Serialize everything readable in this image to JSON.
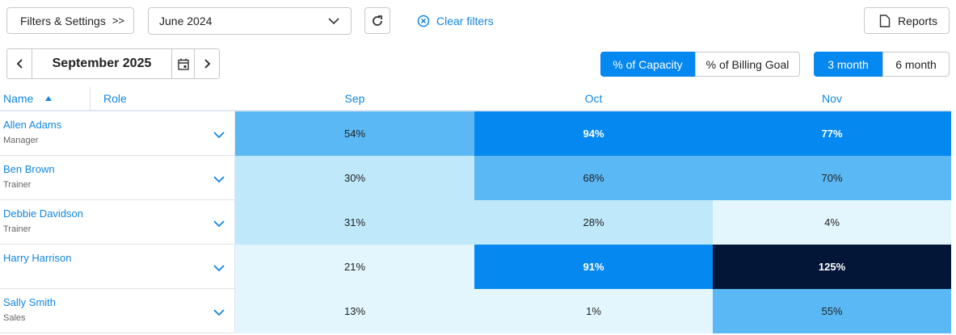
{
  "toolbar": {
    "filters_button": "Filters & Settings",
    "date_select": "June 2024",
    "clear_filters": "Clear filters",
    "reports_button": "Reports"
  },
  "period": {
    "label": "September 2025"
  },
  "metric_toggle": {
    "options": [
      "% of Capacity",
      "% of Billing Goal"
    ],
    "active": 0
  },
  "range_toggle": {
    "options": [
      "3 month",
      "6 month"
    ],
    "active": 0
  },
  "table": {
    "columns": {
      "name": "Name",
      "role": "Role",
      "months": [
        "Sep",
        "Oct",
        "Nov"
      ]
    },
    "rows": [
      {
        "name": "Allen Adams",
        "role": "Manager",
        "cells": [
          {
            "text": "54%",
            "fill": "#5ab8f5"
          },
          {
            "text": "94%",
            "fill": "#0588f0"
          },
          {
            "text": "77%",
            "fill": "#0588f0"
          }
        ]
      },
      {
        "name": "Ben Brown",
        "role": "Trainer",
        "cells": [
          {
            "text": "30%",
            "fill": "#bfe9fb"
          },
          {
            "text": "68%",
            "fill": "#5ab8f5"
          },
          {
            "text": "70%",
            "fill": "#5ab8f5"
          }
        ]
      },
      {
        "name": "Debbie Davidson",
        "role": "Trainer",
        "cells": [
          {
            "text": "31%",
            "fill": "#bfe9fb"
          },
          {
            "text": "28%",
            "fill": "#bfe9fb"
          },
          {
            "text": "4%",
            "fill": "#e3f6fd"
          }
        ]
      },
      {
        "name": "Harry Harrison",
        "role": null,
        "cells": [
          {
            "text": "21%",
            "fill": "#e3f6fd"
          },
          {
            "text": "91%",
            "fill": "#0588f0"
          },
          {
            "text": "125%",
            "fill": "#031638"
          }
        ]
      },
      {
        "name": "Sally Smith",
        "role": "Sales",
        "cells": [
          {
            "text": "13%",
            "fill": "#e3f6fd"
          },
          {
            "text": "1%",
            "fill": "#e3f6fd"
          },
          {
            "text": "55%",
            "fill": "#5ab8f5"
          }
        ]
      }
    ]
  }
}
